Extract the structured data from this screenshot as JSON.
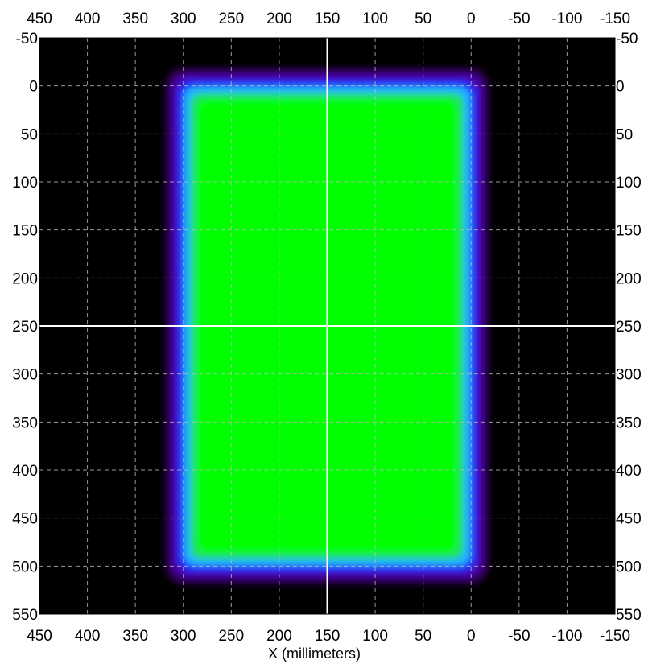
{
  "chart_data": {
    "type": "heatmap",
    "title": "",
    "xlabel": "X (millimeters)",
    "ylabel": "",
    "x_axis": {
      "reversed": true,
      "range": [
        450,
        -150
      ],
      "ticks": [
        450,
        400,
        350,
        300,
        250,
        200,
        150,
        100,
        50,
        0,
        -50,
        -100,
        -150
      ],
      "tick_labels": [
        "450",
        "400",
        "350",
        "300",
        "250",
        "200",
        "150",
        "100",
        "50",
        "0",
        "-50",
        "-100",
        "-150"
      ],
      "shown_on": [
        "top",
        "bottom"
      ]
    },
    "y_axis": {
      "reversed": true,
      "range": [
        -50,
        550
      ],
      "ticks": [
        -50,
        0,
        50,
        100,
        150,
        200,
        250,
        300,
        350,
        400,
        450,
        500,
        550
      ],
      "tick_labels": [
        "-50",
        "0",
        "50",
        "100",
        "150",
        "200",
        "250",
        "300",
        "350",
        "400",
        "450",
        "500",
        "550"
      ],
      "shown_on": [
        "left",
        "right"
      ]
    },
    "grid": true,
    "grid_style": "dashed",
    "crosshair": {
      "x": 150,
      "y": 250
    },
    "intensity_region": {
      "plateau_x_range": [
        0,
        300
      ],
      "plateau_y_range": [
        0,
        500
      ],
      "edge_falloff_mm": 40
    },
    "colormap": [
      "#000000",
      "#2a0048",
      "#4b00a8",
      "#1a2cff",
      "#22b4ff",
      "#20e060",
      "#00ff00"
    ],
    "colors": {
      "background": "#000000",
      "plateau": "#00ff00",
      "grid": "#bdbdbd",
      "crosshair": "#ffffff"
    }
  }
}
